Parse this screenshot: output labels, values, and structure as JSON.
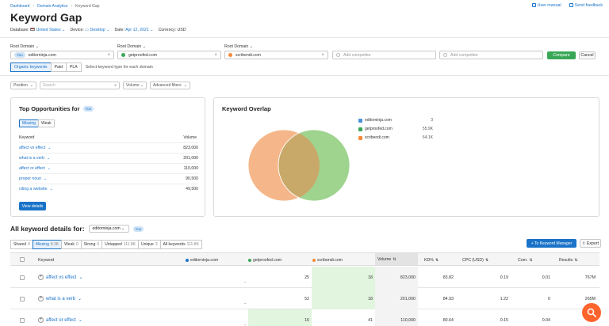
{
  "breadcrumb": [
    "Dashboard",
    "Domain Analytics",
    "Keyword Gap"
  ],
  "title": "Keyword Gap",
  "top_links": {
    "user_manual": "User manual",
    "feedback": "Send feedback"
  },
  "filters": {
    "database_label": "Database:",
    "database_value": "United States",
    "device_label": "Device:",
    "device_value": "Desktop",
    "date_label": "Date:",
    "date_value": "Apr 12, 2021",
    "currency": "Currency: USD"
  },
  "root_domain_label": "Root Domain",
  "domains": [
    {
      "name": "editorninja.com",
      "you": "You",
      "color": "#1a73c8"
    },
    {
      "name": "getproofed.com",
      "color": "#3aa757"
    },
    {
      "name": "scribendi.com",
      "color": "#f7893a"
    }
  ],
  "add_competitor": "Add competitor",
  "compare_button": "Compare",
  "cancel_button": "Cancel",
  "keyword_types": [
    "Organic keywords",
    "Paid",
    "PLA"
  ],
  "keyword_type_hint": "Select keyword type for each domain",
  "filter_bar": {
    "position": "Position",
    "search_placeholder": "Search",
    "volume": "Volume",
    "advanced": "Advanced filters"
  },
  "opportunities": {
    "title": "Top Opportunities for",
    "you": "You",
    "tabs": [
      "Missing",
      "Weak"
    ],
    "col_keyword": "Keyword",
    "col_volume": "Volume",
    "rows": [
      {
        "keyword": "affect vs effect",
        "volume": "823,000"
      },
      {
        "keyword": "what is a verb",
        "volume": "201,000"
      },
      {
        "keyword": "affect or effect",
        "volume": "110,000"
      },
      {
        "keyword": "proper noun",
        "volume": "90,500"
      },
      {
        "keyword": "citing a website",
        "volume": "49,500"
      }
    ],
    "button": "View details"
  },
  "overlap": {
    "title": "Keyword Overlap",
    "legend": [
      {
        "domain": "editorninja.com",
        "value": "3",
        "color": "#4a90d9"
      },
      {
        "domain": "getproofed.com",
        "value": "55.9K",
        "color": "#3aa757"
      },
      {
        "domain": "scribendi.com",
        "value": "64.1K",
        "color": "#f7893a"
      }
    ],
    "venn_colors": {
      "left": "#f5b78a",
      "right": "#9fd48f",
      "intersection": "#c9a96a"
    }
  },
  "details": {
    "title": "All keyword details for:",
    "domain_select": "editorninja.com",
    "you": "You",
    "to_manager": "To Keyword Manager",
    "export": "Export",
    "tabs": [
      {
        "label": "Shared",
        "count": "0"
      },
      {
        "label": "Missing",
        "count": "8.3K"
      },
      {
        "label": "Weak",
        "count": "0"
      },
      {
        "label": "Strong",
        "count": "0"
      },
      {
        "label": "Untapped",
        "count": "111.8K"
      },
      {
        "label": "Unique",
        "count": "3"
      },
      {
        "label": "All keywords",
        "count": "111.8K"
      }
    ],
    "columns": [
      "Keyword",
      "editorninja.com",
      "getproofed.com",
      "scribendi.com",
      "Volume",
      "KD%",
      "CPC (USD)",
      "Com.",
      "Results"
    ],
    "rows": [
      {
        "keyword": "affect vs effect",
        "d1": "-",
        "d2": "25",
        "d3": "18",
        "volume": "823,000",
        "kd": "83.82",
        "cpc": "0.19",
        "com": "0.01",
        "results": "767M"
      },
      {
        "keyword": "what is a verb",
        "d1": "-",
        "d2": "52",
        "d3": "18",
        "volume": "201,000",
        "kd": "84.93",
        "cpc": "1.22",
        "com": "0",
        "results": "265M"
      },
      {
        "keyword": "affect or effect",
        "d1": "-",
        "d2": "16",
        "d3": "41",
        "volume": "110,000",
        "kd": "80.64",
        "cpc": "0.15",
        "com": "0.04",
        "results": ""
      }
    ]
  }
}
